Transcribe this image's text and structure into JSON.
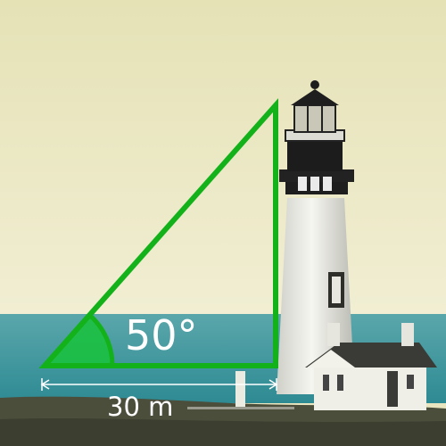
{
  "diagram": {
    "angle_label": "50°",
    "distance_label": "30 m",
    "angle_degrees": 50,
    "base_distance_m": 30,
    "colors": {
      "triangle_stroke": "#13b21a",
      "angle_fill": "#18c23a",
      "label_text": "#ffffff",
      "sky": "#ebe8c2",
      "sea": "#3f9aa0",
      "ground": "#4d4f3e"
    }
  }
}
